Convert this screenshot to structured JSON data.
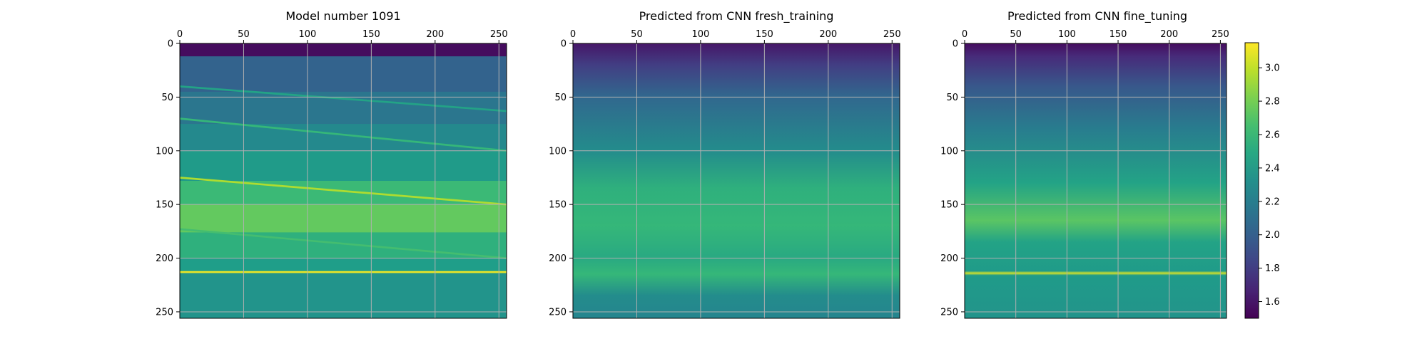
{
  "figure": {
    "background": "#ffffff",
    "grid_color": "#b0b0b0"
  },
  "chart_data": [
    {
      "type": "heatmap",
      "title": "Model number 1091",
      "xlim": [
        0,
        256
      ],
      "ylim": [
        256,
        0
      ],
      "xticks": [
        0,
        50,
        100,
        150,
        200,
        250
      ],
      "yticks": [
        0,
        50,
        100,
        150,
        200,
        250
      ],
      "grid": true,
      "colormap": "viridis",
      "bands": [
        {
          "y0": 0,
          "y1": 12,
          "value": 1.55
        },
        {
          "y0": 12,
          "y1": 45,
          "value": 2.02
        },
        {
          "y0": 45,
          "y1": 75,
          "value": 2.15
        },
        {
          "y0": 75,
          "y1": 100,
          "value": 2.28
        },
        {
          "y0": 100,
          "y1": 128,
          "value": 2.4
        },
        {
          "y0": 128,
          "y1": 150,
          "value": 2.62
        },
        {
          "y0": 150,
          "y1": 176,
          "value": 2.75
        },
        {
          "y0": 176,
          "y1": 200,
          "value": 2.55
        },
        {
          "y0": 200,
          "y1": 212,
          "value": 2.42
        },
        {
          "y0": 212,
          "y1": 256,
          "value": 2.35
        }
      ],
      "interfaces": [
        {
          "y_left": 40,
          "y_right": 63,
          "value": 2.45
        },
        {
          "y_left": 70,
          "y_right": 100,
          "value": 2.6
        },
        {
          "y_left": 125,
          "y_right": 150,
          "value": 2.95
        },
        {
          "y_left": 173,
          "y_right": 200,
          "value": 2.65
        },
        {
          "y_left": 213,
          "y_right": 213,
          "value": 3.1
        }
      ]
    },
    {
      "type": "heatmap",
      "title": "Predicted from CNN fresh_training",
      "xlim": [
        0,
        256
      ],
      "ylim": [
        256,
        0
      ],
      "xticks": [
        0,
        50,
        100,
        150,
        200,
        250
      ],
      "yticks": [
        0,
        50,
        100,
        150,
        200,
        250
      ],
      "grid": true,
      "colormap": "viridis",
      "profile": [
        {
          "depth": 0,
          "value": 1.6
        },
        {
          "depth": 20,
          "value": 1.8
        },
        {
          "depth": 50,
          "value": 2.05
        },
        {
          "depth": 100,
          "value": 2.3
        },
        {
          "depth": 135,
          "value": 2.55
        },
        {
          "depth": 170,
          "value": 2.6
        },
        {
          "depth": 200,
          "value": 2.5
        },
        {
          "depth": 215,
          "value": 2.6
        },
        {
          "depth": 235,
          "value": 2.3
        },
        {
          "depth": 256,
          "value": 2.25
        }
      ]
    },
    {
      "type": "heatmap",
      "title": "Predicted from CNN fine_tuning",
      "xlim": [
        0,
        256
      ],
      "ylim": [
        256,
        0
      ],
      "xticks": [
        0,
        50,
        100,
        150,
        200,
        250
      ],
      "yticks": [
        0,
        50,
        100,
        150,
        200,
        250
      ],
      "grid": true,
      "colormap": "viridis",
      "profile": [
        {
          "depth": 0,
          "value": 1.55
        },
        {
          "depth": 12,
          "value": 1.7
        },
        {
          "depth": 40,
          "value": 1.95
        },
        {
          "depth": 80,
          "value": 2.2
        },
        {
          "depth": 130,
          "value": 2.45
        },
        {
          "depth": 165,
          "value": 2.72
        },
        {
          "depth": 185,
          "value": 2.45
        },
        {
          "depth": 212,
          "value": 2.4
        },
        {
          "depth": 214,
          "value": 3.05
        },
        {
          "depth": 216,
          "value": 2.4
        },
        {
          "depth": 256,
          "value": 2.35
        }
      ]
    }
  ],
  "colorbar": {
    "min": 1.5,
    "max": 3.15,
    "ticks": [
      "1.6",
      "1.8",
      "2.0",
      "2.2",
      "2.4",
      "2.6",
      "2.8",
      "3.0"
    ]
  }
}
